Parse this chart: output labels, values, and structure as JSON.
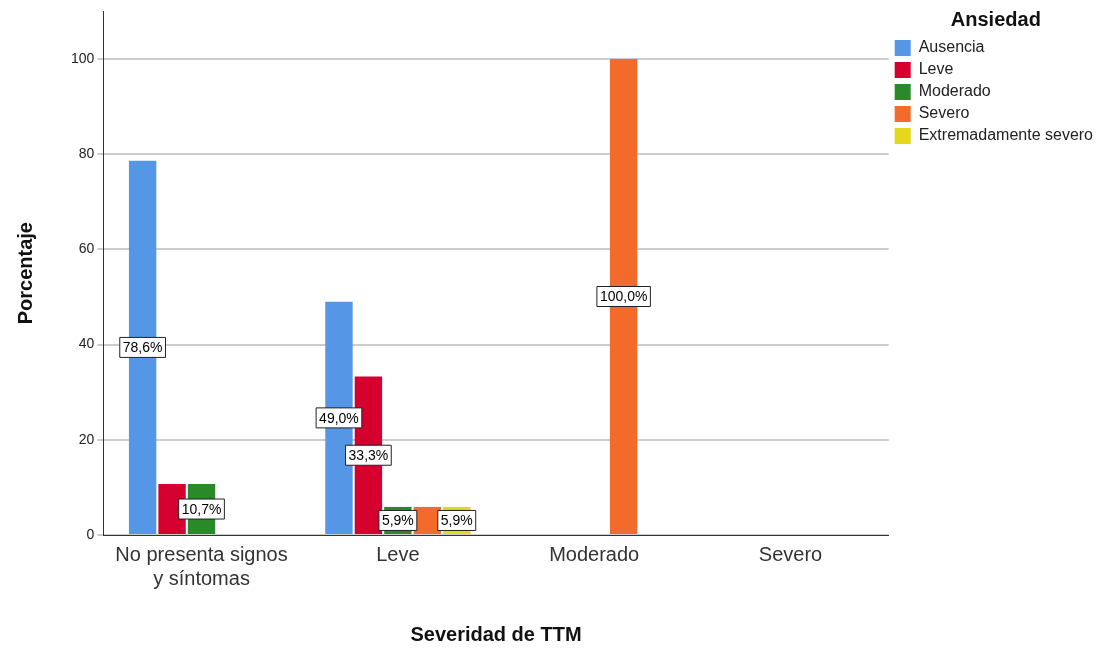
{
  "chart_data": {
    "type": "bar",
    "xlabel": "Severidad de TTM",
    "ylabel": "Porcentaje",
    "legend_title": "Ansiedad",
    "legend": "top right",
    "grid": "y",
    "categories": [
      "No presenta signos y síntomas",
      "Leve",
      "Moderado",
      "Severo"
    ],
    "ylim": [
      0,
      110
    ],
    "yticks": [
      0,
      20,
      40,
      60,
      80,
      100
    ],
    "series": [
      {
        "name": "Ausencia",
        "color": "#5596e6",
        "values": [
          78.6,
          49.0,
          null,
          null
        ],
        "value_labels": [
          "78,6%",
          "49,0%",
          null,
          null
        ]
      },
      {
        "name": "Leve",
        "color": "#d6002f",
        "values": [
          10.7,
          33.3,
          null,
          null
        ],
        "value_labels": [
          null,
          "33,3%",
          null,
          null
        ]
      },
      {
        "name": "Moderado",
        "color": "#2a8a2a",
        "values": [
          10.7,
          5.9,
          null,
          null
        ],
        "value_labels": [
          "10,7%",
          "5,9%",
          null,
          null
        ]
      },
      {
        "name": "Severo",
        "color": "#f26b2a",
        "values": [
          null,
          5.9,
          100,
          null
        ],
        "value_labels": [
          null,
          null,
          "100,0%",
          null
        ]
      },
      {
        "name": "Extremadamente severo",
        "color": "#e5d71a",
        "values": [
          null,
          5.9,
          null,
          null
        ],
        "value_labels": [
          null,
          "5,9%",
          null,
          null
        ]
      }
    ]
  }
}
